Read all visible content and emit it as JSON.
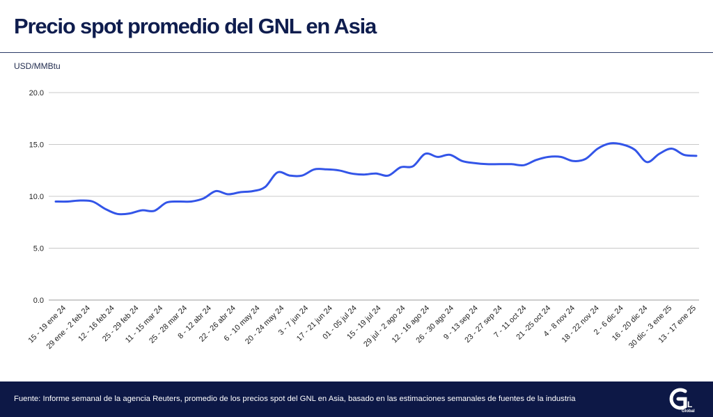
{
  "header": {
    "title": "Precio spot promedio del GNL en Asia"
  },
  "footer": {
    "source": "Fuente: Informe semanal de la agencia Reuters, promedio de los precios spot del GNL en Asia, basado en las estimaciones semanales de fuentes de la industria",
    "logo_text": "GNL Global",
    "logo_color": "#ffffff",
    "background": "#0d1846"
  },
  "chart_data": {
    "type": "line",
    "title": "Precio spot promedio del GNL en Asia",
    "ylabel": "USD/MMBtu",
    "xlabel": "",
    "ylim": [
      0,
      20
    ],
    "yticks": [
      "0.0",
      "5.0",
      "10.0",
      "15.0",
      "20.0"
    ],
    "grid": true,
    "legend": "none",
    "line_color": "#3355e8",
    "x_tick_labels": [
      "15 - 19 ene 24",
      "29 ene - 2 feb 24",
      "12 - 16 feb 24",
      "25 - 29 feb 24",
      "11 - 15 mar 24",
      "25 - 28 mar 24",
      "8 - 12 abr 24",
      "22 - 26 abr 24",
      "6 - 10 may 24",
      "20 - 24 may 24",
      "3 - 7 jun 24",
      "17 - 21 jun 24",
      "01 - 05 jul 24",
      "15 - 19 jul 24",
      "29 jul - 2 ago 24",
      "12 - 16 ago 24",
      "26 - 30 ago 24",
      "9 - 13 sep 24",
      "23 - 27 sep 24",
      "7 - 11 oct 24",
      "21 -25 oct 24",
      "4 - 8 nov 24",
      "18 - 22 nov 24",
      "2 - 6 dic 24",
      "16 - 20 dic 24",
      "30 dic - 3 ene 25",
      "13 - 17 ene 25"
    ],
    "series": [
      {
        "values": [
          9.5,
          9.5,
          9.6,
          9.5,
          8.8,
          8.3,
          8.35,
          8.65,
          8.6,
          9.4,
          9.5,
          9.5,
          9.8,
          10.5,
          10.2,
          10.4,
          10.5,
          10.9,
          12.3,
          12.0,
          12.0,
          12.6,
          12.6,
          12.5,
          12.2,
          12.1,
          12.2,
          12.0,
          12.8,
          12.9,
          14.1,
          13.8,
          14.0,
          13.4,
          13.2,
          13.1,
          13.1,
          13.1,
          13.0,
          13.5,
          13.8,
          13.8,
          13.4,
          13.6,
          14.6,
          15.1,
          15.0,
          14.5,
          13.3,
          14.1,
          14.6,
          14.0,
          13.9
        ]
      }
    ]
  }
}
